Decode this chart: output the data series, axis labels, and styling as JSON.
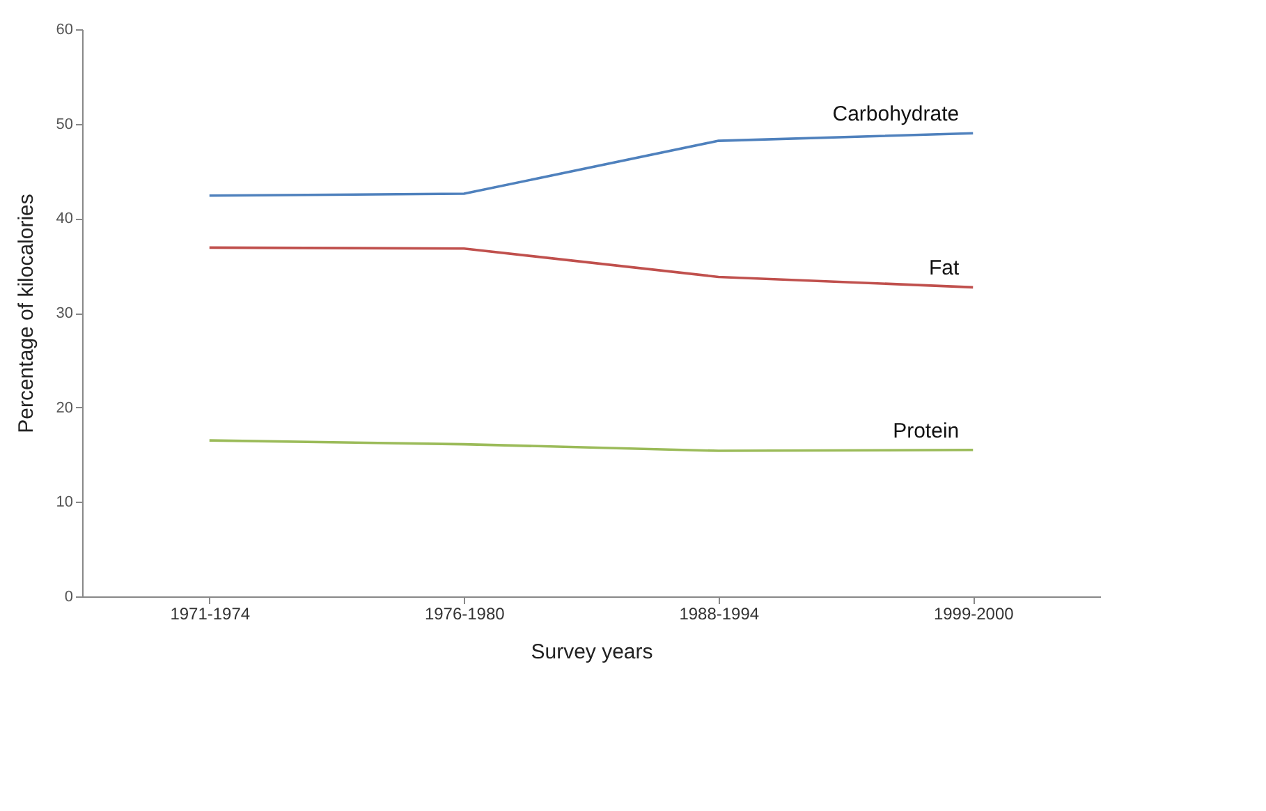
{
  "chart_data": {
    "type": "line",
    "xlabel": "Survey years",
    "ylabel": "Percentage of kilocalories",
    "categories": [
      "1971-1974",
      "1976-1980",
      "1988-1994",
      "1999-2000"
    ],
    "series": [
      {
        "name": "Carbohydrate",
        "color": "#4f81bd",
        "values": [
          42.4,
          42.6,
          48.2,
          49.0
        ]
      },
      {
        "name": "Fat",
        "color": "#c0504d",
        "values": [
          36.9,
          36.8,
          33.8,
          32.7
        ]
      },
      {
        "name": "Protein",
        "color": "#9bbb59",
        "values": [
          16.5,
          16.1,
          15.4,
          15.5
        ]
      }
    ],
    "ylim": [
      0,
      60
    ],
    "yticks": [
      0,
      10,
      20,
      30,
      40,
      50,
      60
    ],
    "grid": false,
    "legend": false,
    "marker": "none",
    "line_style": "solid"
  }
}
